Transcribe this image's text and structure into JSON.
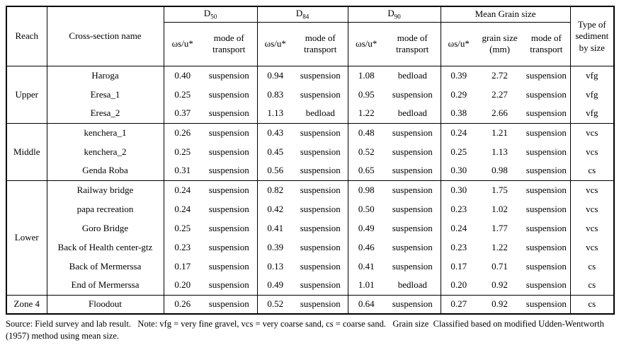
{
  "header": {
    "reach": "Reach",
    "cross_section": "Cross-section name",
    "d50": {
      "base": "D",
      "sub": "50"
    },
    "d84": {
      "base": "D",
      "sub": "84"
    },
    "d90": {
      "base": "D",
      "sub": "90"
    },
    "mean_grain": "Mean Grain size",
    "type": "Type of sediment by size",
    "ws_u": "ωs/u*",
    "mode": "mode of transport",
    "grain_size": "grain size (mm)"
  },
  "groups": [
    {
      "reach": "Upper",
      "rows": [
        {
          "name": "Haroga",
          "d50v": "0.40",
          "d50m": "suspension",
          "d84v": "0.94",
          "d84m": "suspension",
          "d90v": "1.08",
          "d90m": "bedload",
          "mgv": "0.39",
          "mgs": "2.72",
          "mgm": "suspension",
          "type": "vfg"
        },
        {
          "name": "Eresa_1",
          "d50v": "0.25",
          "d50m": "suspension",
          "d84v": "0.83",
          "d84m": "suspension",
          "d90v": "0.95",
          "d90m": "suspension",
          "mgv": "0.29",
          "mgs": "2.27",
          "mgm": "suspension",
          "type": "vfg"
        },
        {
          "name": "Eresa_2",
          "d50v": "0.37",
          "d50m": "suspension",
          "d84v": "1.13",
          "d84m": "bedload",
          "d90v": "1.22",
          "d90m": "bedload",
          "mgv": "0.38",
          "mgs": "2.66",
          "mgm": "suspension",
          "type": "vfg"
        }
      ]
    },
    {
      "reach": "Middle",
      "rows": [
        {
          "name": "kenchera_1",
          "d50v": "0.26",
          "d50m": "suspension",
          "d84v": "0.43",
          "d84m": "suspension",
          "d90v": "0.48",
          "d90m": "suspension",
          "mgv": "0.24",
          "mgs": "1.21",
          "mgm": "suspension",
          "type": "vcs"
        },
        {
          "name": "kenchera_2",
          "d50v": "0.25",
          "d50m": "suspension",
          "d84v": "0.45",
          "d84m": "suspension",
          "d90v": "0.52",
          "d90m": "suspension",
          "mgv": "0.25",
          "mgs": "1.13",
          "mgm": "suspension",
          "type": "vcs"
        },
        {
          "name": "Genda Roba",
          "d50v": "0.31",
          "d50m": "suspension",
          "d84v": "0.56",
          "d84m": "suspension",
          "d90v": "0.65",
          "d90m": "suspension",
          "mgv": "0.30",
          "mgs": "0.98",
          "mgm": "suspension",
          "type": "cs"
        }
      ]
    },
    {
      "reach": "Lower",
      "rows": [
        {
          "name": "Railway bridge",
          "d50v": "0.24",
          "d50m": "suspension",
          "d84v": "0.82",
          "d84m": "suspension",
          "d90v": "0.98",
          "d90m": "suspension",
          "mgv": "0.30",
          "mgs": "1.75",
          "mgm": "suspension",
          "type": "vcs"
        },
        {
          "name": "papa recreation",
          "d50v": "0.24",
          "d50m": "suspension",
          "d84v": "0.42",
          "d84m": "suspension",
          "d90v": "0.50",
          "d90m": "suspension",
          "mgv": "0.23",
          "mgs": "1.02",
          "mgm": "suspension",
          "type": "vcs"
        },
        {
          "name": "Goro Bridge",
          "d50v": "0.25",
          "d50m": "suspension",
          "d84v": "0.41",
          "d84m": "suspension",
          "d90v": "0.49",
          "d90m": "suspension",
          "mgv": "0.24",
          "mgs": "1.77",
          "mgm": "suspension",
          "type": "vcs"
        },
        {
          "name": "Back of Health center-gtz",
          "d50v": "0.23",
          "d50m": "suspension",
          "d84v": "0.39",
          "d84m": "suspension",
          "d90v": "0.46",
          "d90m": "suspension",
          "mgv": "0.23",
          "mgs": "1.22",
          "mgm": "suspension",
          "type": "vcs"
        },
        {
          "name": "Back of Mermerssa",
          "d50v": "0.17",
          "d50m": "suspension",
          "d84v": "0.13",
          "d84m": "suspension",
          "d90v": "0.41",
          "d90m": "suspension",
          "mgv": "0.17",
          "mgs": "0.71",
          "mgm": "suspension",
          "type": "cs"
        },
        {
          "name": "End of Mermerssa",
          "d50v": "0.20",
          "d50m": "suspension",
          "d84v": "0.49",
          "d84m": "suspension",
          "d90v": "1.01",
          "d90m": "bedload",
          "mgv": "0.20",
          "mgs": "0.92",
          "mgm": "suspension",
          "type": "cs"
        }
      ]
    },
    {
      "reach": "Zone 4",
      "rows": [
        {
          "name": "Floodout",
          "d50v": "0.26",
          "d50m": "suspension",
          "d84v": "0.52",
          "d84m": "suspension",
          "d90v": "0.64",
          "d90m": "suspension",
          "mgv": "0.27",
          "mgs": "0.92",
          "mgm": "suspension",
          "type": "cs"
        }
      ]
    }
  ],
  "footer": {
    "text": "Source: Field survey and lab result.   Note: vfg = very fine gravel, vcs = very coarse sand, cs = coarse sand.   Grain size  Classified based on modified Udden-Wentworth (1957) method using mean size."
  }
}
